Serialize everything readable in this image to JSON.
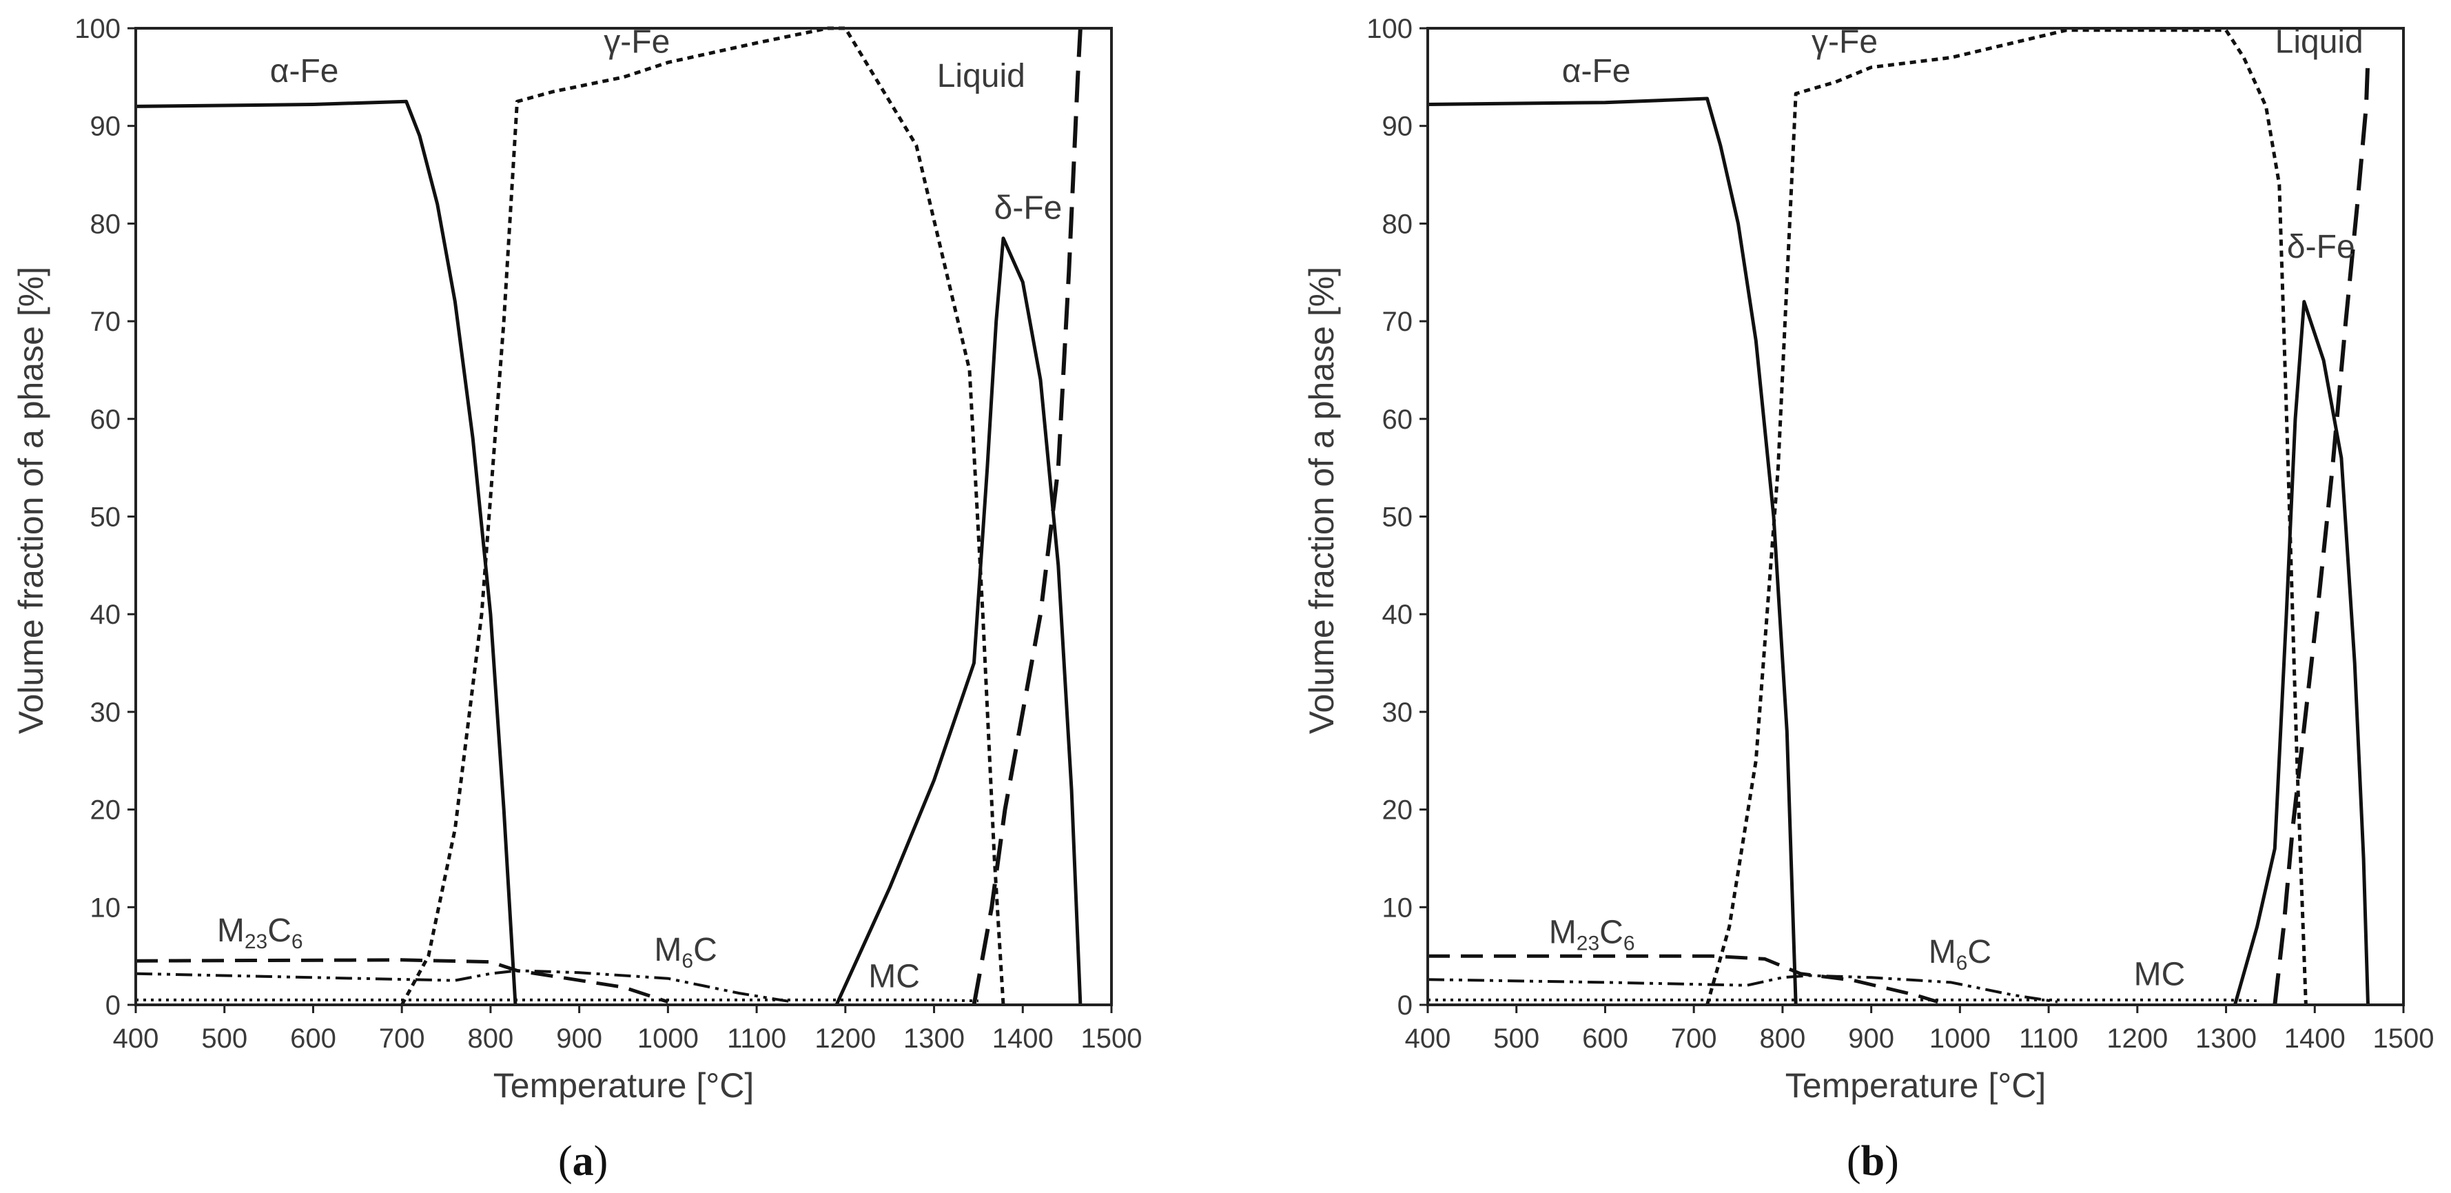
{
  "figure": {
    "colors": {
      "line": "#111111",
      "axis": "#222222",
      "text": "#3a3a3a",
      "background": "#ffffff"
    }
  },
  "chart_data": [
    {
      "type": "line",
      "panel_label": "a",
      "xlabel": "Temperature [°C]",
      "ylabel": "Volume fraction of a phase [%]",
      "xlim": [
        400,
        1500
      ],
      "ylim": [
        0,
        100
      ],
      "xticks": [
        400,
        500,
        600,
        700,
        800,
        900,
        1000,
        1100,
        1200,
        1300,
        1400,
        1500
      ],
      "yticks": [
        0,
        10,
        20,
        30,
        40,
        50,
        60,
        70,
        80,
        90,
        100
      ],
      "series": [
        {
          "name": "α-Fe",
          "style": "solid",
          "points": [
            [
              400,
              92
            ],
            [
              600,
              92.2
            ],
            [
              705,
              92.5
            ],
            [
              720,
              89
            ],
            [
              740,
              82
            ],
            [
              760,
              72
            ],
            [
              780,
              58
            ],
            [
              800,
              40
            ],
            [
              815,
              20
            ],
            [
              828,
              0
            ]
          ]
        },
        {
          "name": "γ-Fe",
          "style": "dotted",
          "points": [
            [
              700,
              0
            ],
            [
              730,
              5
            ],
            [
              760,
              18
            ],
            [
              790,
              40
            ],
            [
              815,
              70
            ],
            [
              830,
              92.5
            ],
            [
              870,
              93.5
            ],
            [
              950,
              95
            ],
            [
              1000,
              96.5
            ],
            [
              1100,
              98.5
            ],
            [
              1180,
              100
            ],
            [
              1200,
              100
            ],
            [
              1280,
              88
            ],
            [
              1340,
              65
            ],
            [
              1355,
              40
            ],
            [
              1368,
              15
            ],
            [
              1378,
              0
            ]
          ]
        },
        {
          "name": "δ-Fe",
          "style": "solid",
          "points": [
            [
              1190,
              0
            ],
            [
              1250,
              12
            ],
            [
              1300,
              23
            ],
            [
              1345,
              35
            ],
            [
              1360,
              55
            ],
            [
              1370,
              70
            ],
            [
              1378,
              78.5
            ],
            [
              1400,
              74
            ],
            [
              1420,
              64
            ],
            [
              1440,
              45
            ],
            [
              1455,
              22
            ],
            [
              1465,
              0
            ]
          ]
        },
        {
          "name": "Liquid",
          "style": "long-dash",
          "points": [
            [
              1345,
              0
            ],
            [
              1365,
              10
            ],
            [
              1380,
              20
            ],
            [
              1400,
              30
            ],
            [
              1420,
              40
            ],
            [
              1440,
              55
            ],
            [
              1452,
              75
            ],
            [
              1462,
              95
            ],
            [
              1465,
              100
            ]
          ]
        },
        {
          "name": "M23C6",
          "style": "dash",
          "points": [
            [
              400,
              4.5
            ],
            [
              700,
              4.6
            ],
            [
              800,
              4.4
            ],
            [
              830,
              3.5
            ],
            [
              880,
              2.8
            ],
            [
              950,
              1.8
            ],
            [
              1000,
              0.3
            ]
          ]
        },
        {
          "name": "M6C",
          "style": "dash-dot-dot",
          "points": [
            [
              400,
              3.2
            ],
            [
              600,
              2.8
            ],
            [
              760,
              2.5
            ],
            [
              800,
              3.2
            ],
            [
              830,
              3.5
            ],
            [
              900,
              3.3
            ],
            [
              1000,
              2.7
            ],
            [
              1080,
              1.2
            ],
            [
              1140,
              0.3
            ]
          ]
        },
        {
          "name": "MC",
          "style": "dotted-fine",
          "points": [
            [
              400,
              0.5
            ],
            [
              1300,
              0.5
            ],
            [
              1350,
              0.4
            ]
          ]
        }
      ],
      "annotations": [
        {
          "text": "α-Fe",
          "x": 590,
          "y": 94.5
        },
        {
          "text": "γ-Fe",
          "x": 965,
          "y": 97.5
        },
        {
          "text": "Liquid",
          "x": 1353,
          "y": 94
        },
        {
          "text": "δ-Fe",
          "x": 1406,
          "y": 80.5
        },
        {
          "text": "M",
          "sub": "23",
          "after": "C",
          "sub2": "6",
          "x": 540,
          "y": 6.5
        },
        {
          "text": "M",
          "sub": "6",
          "after": "C",
          "x": 1020,
          "y": 4.5
        },
        {
          "text": "MC",
          "x": 1255,
          "y": 1.8
        }
      ]
    },
    {
      "type": "line",
      "panel_label": "b",
      "xlabel": "Temperature [°C]",
      "ylabel": "Volume fraction of a phase [%]",
      "xlim": [
        400,
        1500
      ],
      "ylim": [
        0,
        100
      ],
      "xticks": [
        400,
        500,
        600,
        700,
        800,
        900,
        1000,
        1100,
        1200,
        1300,
        1400,
        1500
      ],
      "yticks": [
        0,
        10,
        20,
        30,
        40,
        50,
        60,
        70,
        80,
        90,
        100
      ],
      "series": [
        {
          "name": "α-Fe",
          "style": "solid",
          "points": [
            [
              400,
              92.2
            ],
            [
              600,
              92.4
            ],
            [
              715,
              92.8
            ],
            [
              730,
              88
            ],
            [
              750,
              80
            ],
            [
              770,
              68
            ],
            [
              790,
              50
            ],
            [
              805,
              28
            ],
            [
              815,
              0
            ]
          ]
        },
        {
          "name": "γ-Fe",
          "style": "dotted",
          "points": [
            [
              715,
              0
            ],
            [
              740,
              8
            ],
            [
              770,
              25
            ],
            [
              795,
              55
            ],
            [
              815,
              93.3
            ],
            [
              860,
              94.5
            ],
            [
              900,
              96
            ],
            [
              990,
              97
            ],
            [
              1120,
              99.8
            ],
            [
              1300,
              99.8
            ],
            [
              1320,
              97
            ],
            [
              1345,
              92
            ],
            [
              1360,
              84
            ],
            [
              1370,
              55
            ],
            [
              1380,
              25
            ],
            [
              1390,
              0
            ]
          ]
        },
        {
          "name": "δ-Fe",
          "style": "solid",
          "points": [
            [
              1310,
              0
            ],
            [
              1335,
              8
            ],
            [
              1355,
              16
            ],
            [
              1368,
              40
            ],
            [
              1378,
              60
            ],
            [
              1388,
              72
            ],
            [
              1410,
              66
            ],
            [
              1430,
              56
            ],
            [
              1445,
              35
            ],
            [
              1455,
              15
            ],
            [
              1460,
              0
            ]
          ]
        },
        {
          "name": "Liquid",
          "style": "long-dash",
          "points": [
            [
              1355,
              0
            ],
            [
              1365,
              8
            ],
            [
              1375,
              18
            ],
            [
              1390,
              30
            ],
            [
              1405,
              42
            ],
            [
              1420,
              55
            ],
            [
              1435,
              70
            ],
            [
              1448,
              82
            ],
            [
              1458,
              92
            ],
            [
              1460,
              97
            ]
          ]
        },
        {
          "name": "M23C6",
          "style": "dash",
          "points": [
            [
              400,
              5
            ],
            [
              720,
              5
            ],
            [
              780,
              4.7
            ],
            [
              820,
              3.2
            ],
            [
              880,
              2.5
            ],
            [
              950,
              1.0
            ],
            [
              975,
              0.3
            ]
          ]
        },
        {
          "name": "M6C",
          "style": "dash-dot-dot",
          "points": [
            [
              400,
              2.6
            ],
            [
              600,
              2.3
            ],
            [
              760,
              2.0
            ],
            [
              800,
              2.8
            ],
            [
              830,
              3.0
            ],
            [
              900,
              2.8
            ],
            [
              990,
              2.3
            ],
            [
              1060,
              1.0
            ],
            [
              1110,
              0.3
            ]
          ]
        },
        {
          "name": "MC",
          "style": "dotted-fine",
          "points": [
            [
              400,
              0.5
            ],
            [
              1300,
              0.5
            ],
            [
              1340,
              0.4
            ]
          ]
        }
      ],
      "annotations": [
        {
          "text": "α-Fe",
          "x": 590,
          "y": 94.5
        },
        {
          "text": "γ-Fe",
          "x": 870,
          "y": 97.5
        },
        {
          "text": "Liquid",
          "x": 1405,
          "y": 97.5
        },
        {
          "text": "δ-Fe",
          "x": 1407,
          "y": 76.5
        },
        {
          "text": "M",
          "sub": "23",
          "after": "C",
          "sub2": "6",
          "x": 585,
          "y": 6.3
        },
        {
          "text": "M",
          "sub": "6",
          "after": "C",
          "x": 1000,
          "y": 4.3
        },
        {
          "text": "MC",
          "x": 1225,
          "y": 2.0
        }
      ]
    }
  ]
}
